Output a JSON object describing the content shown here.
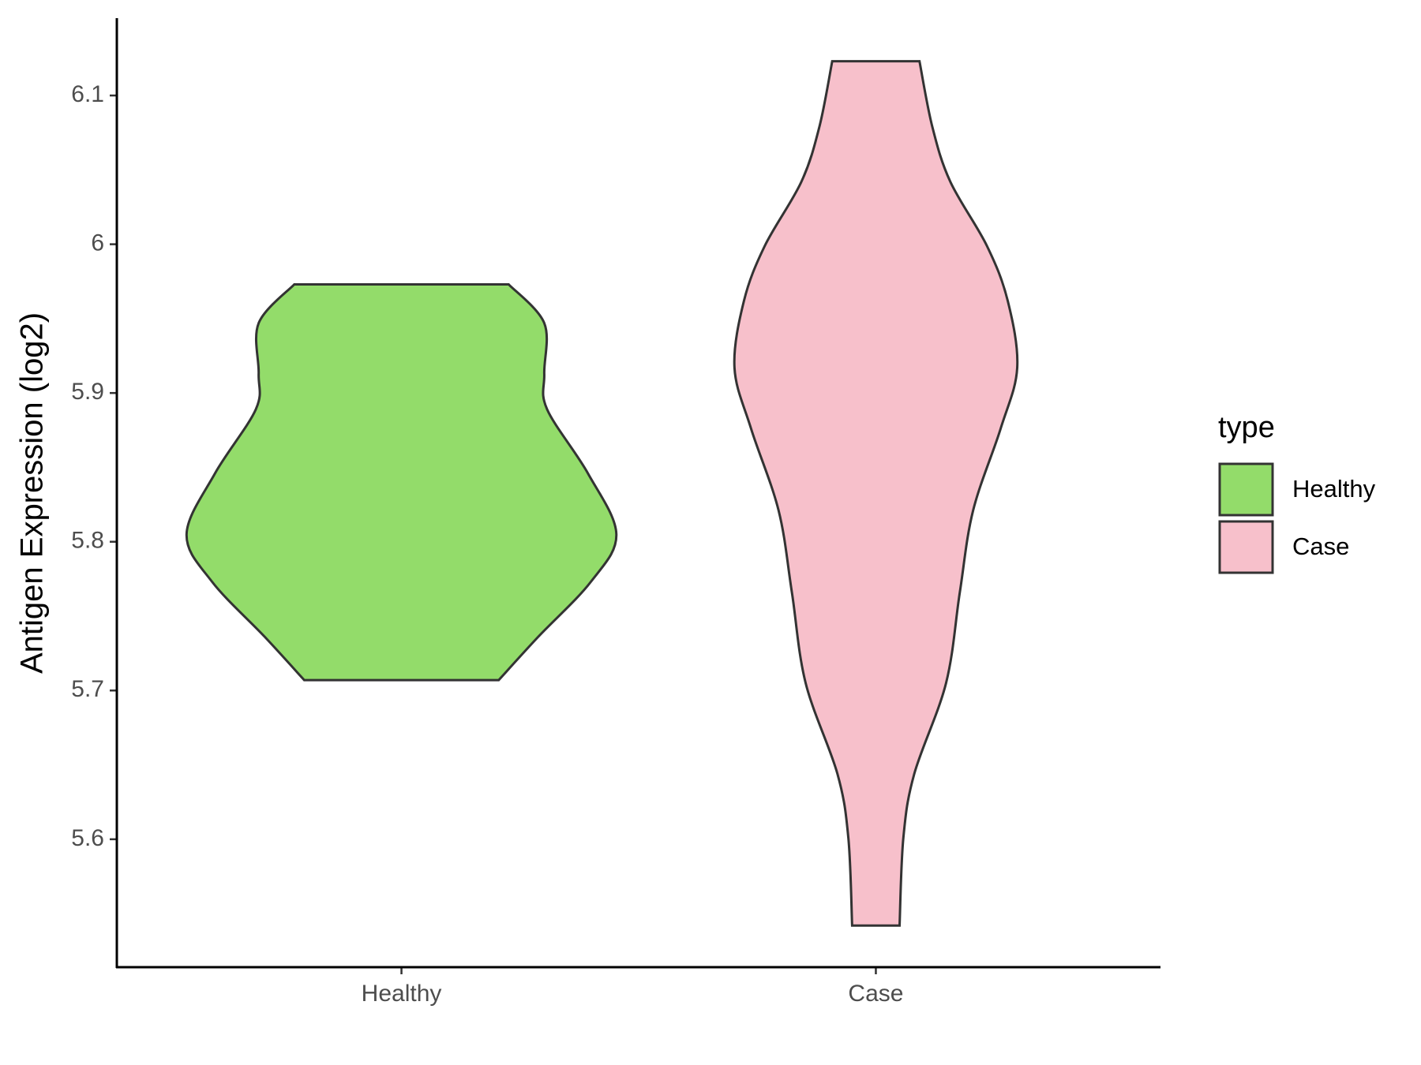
{
  "chart_data": {
    "type": "violin",
    "y_label": "Antigen Expression (log2)",
    "categories": [
      "Healthy",
      "Case"
    ],
    "legend_title": "type",
    "legend": "right",
    "ylim": [
      5.514,
      6.152
    ],
    "yticks": [
      5.6,
      5.7,
      5.8,
      5.9,
      6.0,
      6.1
    ],
    "series": [
      {
        "name": "Healthy",
        "color": "#93dc6a",
        "y": [
          5.973,
          5.947,
          5.913,
          5.889,
          5.846,
          5.805,
          5.773,
          5.736,
          5.707
        ],
        "width": [
          0.226,
          0.301,
          0.301,
          0.307,
          0.393,
          0.453,
          0.399,
          0.288,
          0.205
        ]
      },
      {
        "name": "Case",
        "color": "#f7c0cb",
        "y": [
          6.123,
          6.079,
          6.042,
          5.999,
          5.962,
          5.917,
          5.876,
          5.821,
          5.766,
          5.705,
          5.644,
          5.601,
          5.542
        ],
        "width": [
          0.092,
          0.119,
          0.157,
          0.234,
          0.278,
          0.298,
          0.263,
          0.205,
          0.177,
          0.148,
          0.081,
          0.058,
          0.05
        ]
      }
    ]
  }
}
